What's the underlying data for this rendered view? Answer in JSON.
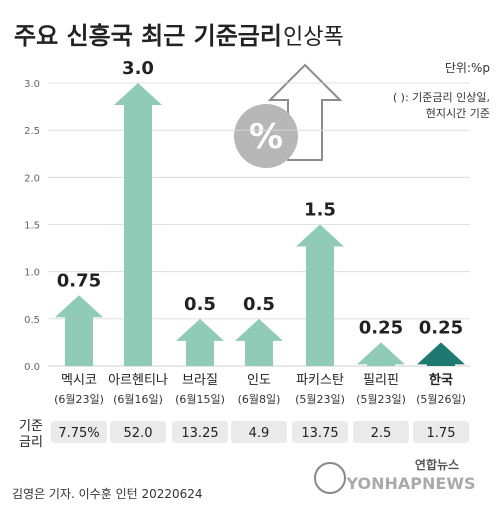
{
  "title_main": "주요 신흥국 최근 기준금리",
  "title_sub": "인상폭",
  "unit": "단위:%p",
  "note_lines": [
    "( ): 기준금리 인상일,",
    "현지시간 기준"
  ],
  "rate_label_lines": [
    "기준",
    "금리"
  ],
  "credit": "김영은 기자. 이수훈 인턴  20220624",
  "logo_text": "연합뉴스",
  "logo_sub": "YONHAPNEWS",
  "icon_symbol": "%",
  "colors": {
    "bar": "#8fcbb7",
    "highlight": "#1e7a70",
    "grid": "#d9d9d9",
    "rate_bg": "#eaeaea",
    "icon_circle": "#b7b7b7"
  },
  "chart_data": {
    "type": "bar",
    "ylim": [
      0,
      3.0
    ],
    "yticks": [
      "0.0",
      "0.5",
      "1.0",
      "1.5",
      "2.0",
      "2.5",
      "3.0"
    ],
    "categories": [
      "멕시코",
      "아르헨티나",
      "브라질",
      "인도",
      "파키스탄",
      "필리핀",
      "한국"
    ],
    "dates": [
      "(6월23일)",
      "(6월16일)",
      "(6월15일)",
      "(6월8일)",
      "(5월23일)",
      "(5월23일)",
      "(5월26일)"
    ],
    "values": [
      0.75,
      3.0,
      0.5,
      0.5,
      1.5,
      0.25,
      0.25
    ],
    "value_labels": [
      "0.75",
      "3.0",
      "0.5",
      "0.5",
      "1.5",
      "0.25",
      "0.25"
    ],
    "rates": [
      "7.75%",
      "52.0",
      "13.25",
      "4.9",
      "13.75",
      "2.5",
      "1.75"
    ],
    "highlight": "한국"
  }
}
